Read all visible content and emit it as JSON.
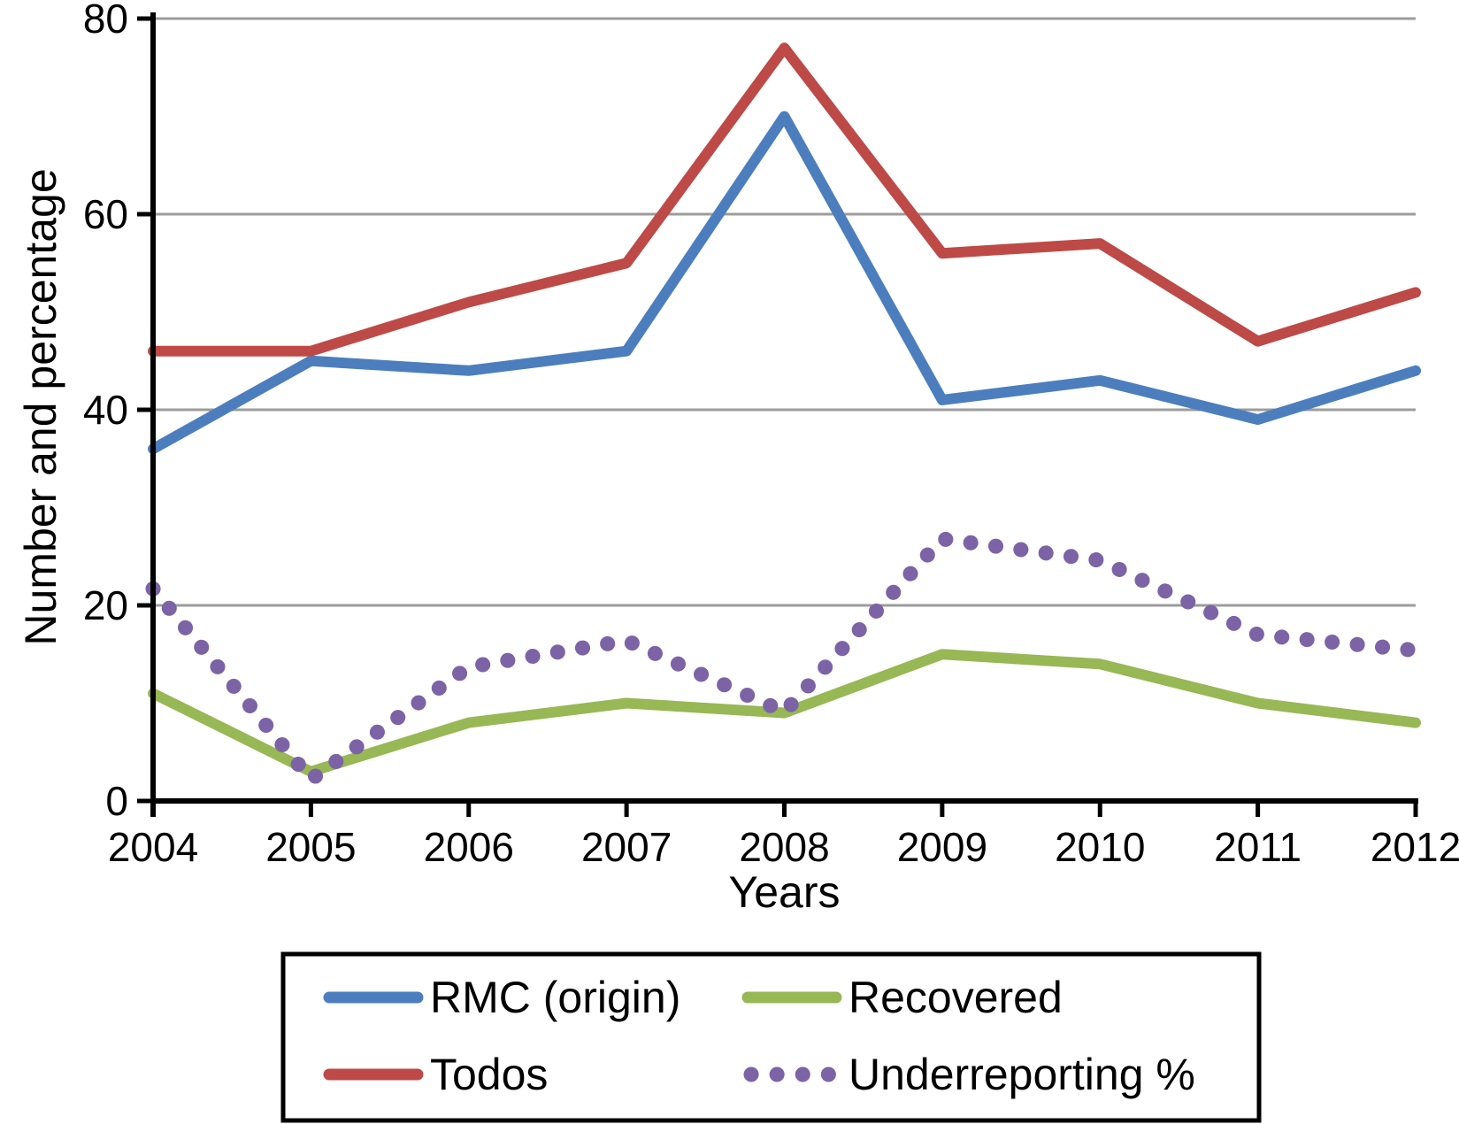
{
  "chart_data": {
    "type": "line",
    "title": "",
    "xlabel": "Years",
    "ylabel": "Number and percentage",
    "x": [
      2004,
      2005,
      2006,
      2007,
      2008,
      2009,
      2010,
      2011,
      2012
    ],
    "ylim": [
      0,
      80
    ],
    "yticks": [
      0,
      20,
      40,
      60,
      80
    ],
    "grid": "horizontal",
    "grid_color": "#9c9c9c",
    "axis_color": "#000000",
    "legend_position": "bottom-box",
    "series": [
      {
        "name": "RMC (origin)",
        "color": "#4c7ebe",
        "style": "solid",
        "values": [
          36,
          45,
          44,
          46,
          70,
          41,
          43,
          39,
          44
        ]
      },
      {
        "name": "Todos",
        "color": "#bd4a47",
        "style": "solid",
        "values": [
          46,
          46,
          51,
          55,
          77,
          56,
          57,
          47,
          52
        ]
      },
      {
        "name": "Recovered",
        "color": "#97b855",
        "style": "solid",
        "values": [
          11,
          3,
          8,
          10,
          9,
          15,
          14,
          10,
          8
        ]
      },
      {
        "name": "Underreporting %",
        "color": "#7c63a5",
        "style": "dotted",
        "values": [
          21.7,
          2.2,
          13.7,
          16.4,
          9.1,
          26.8,
          24.6,
          17.0,
          15.4
        ]
      }
    ]
  }
}
